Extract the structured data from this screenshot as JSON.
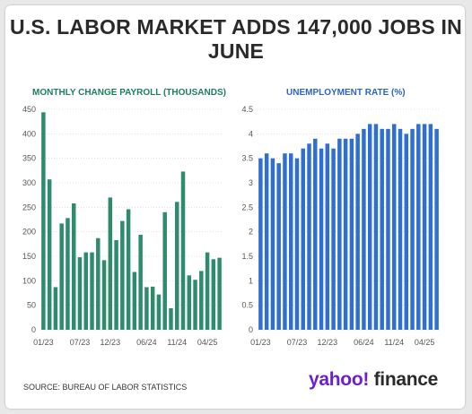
{
  "header": {
    "title": "U.S. LABOR MARKET ADDS 147,000 JOBS IN JUNE"
  },
  "footer": {
    "source": "SOURCE: BUREAU OF LABOR STATISTICS",
    "logo_part1": "yahoo!",
    "logo_part2": "finance"
  },
  "colors": {
    "payroll_bar": "#2e8b6e",
    "unemployment_bar": "#2f6fd1",
    "grid": "#cfcfcf"
  },
  "chart_data": [
    {
      "type": "bar",
      "title": "MONTHLY CHANGE PAYROLL (THOUSANDS)",
      "x": [
        "01/23",
        "02/23",
        "03/23",
        "04/23",
        "05/23",
        "06/23",
        "07/23",
        "08/23",
        "09/23",
        "10/23",
        "11/23",
        "12/23",
        "01/24",
        "02/24",
        "03/24",
        "04/24",
        "05/24",
        "06/24",
        "07/24",
        "08/24",
        "09/24",
        "10/24",
        "11/24",
        "12/24",
        "01/25",
        "02/25",
        "03/25",
        "04/25",
        "05/25",
        "06/25"
      ],
      "values": [
        444,
        307,
        87,
        217,
        228,
        258,
        148,
        158,
        158,
        187,
        142,
        270,
        183,
        222,
        246,
        118,
        194,
        87,
        88,
        72,
        240,
        44,
        261,
        323,
        111,
        102,
        120,
        158,
        144,
        147
      ],
      "ylim": [
        0,
        450
      ],
      "yticks": [
        0,
        50,
        100,
        150,
        200,
        250,
        300,
        350,
        400,
        450
      ],
      "xticks": [
        "01/23",
        "07/23",
        "12/23",
        "06/24",
        "11/24",
        "04/25"
      ],
      "xtick_index": [
        0,
        6,
        11,
        17,
        22,
        27
      ],
      "grid": true
    },
    {
      "type": "bar",
      "title": "UNEMPLOYMENT RATE (%)",
      "x": [
        "01/23",
        "02/23",
        "03/23",
        "04/23",
        "05/23",
        "06/23",
        "07/23",
        "08/23",
        "09/23",
        "10/23",
        "11/23",
        "12/23",
        "01/24",
        "02/24",
        "03/24",
        "04/24",
        "05/24",
        "06/24",
        "07/24",
        "08/24",
        "09/24",
        "10/24",
        "11/24",
        "12/24",
        "01/25",
        "02/25",
        "03/25",
        "04/25",
        "05/25",
        "06/25"
      ],
      "values": [
        3.5,
        3.6,
        3.5,
        3.4,
        3.6,
        3.6,
        3.5,
        3.7,
        3.8,
        3.9,
        3.7,
        3.8,
        3.7,
        3.9,
        3.9,
        3.9,
        4.0,
        4.1,
        4.2,
        4.2,
        4.1,
        4.1,
        4.2,
        4.1,
        4.0,
        4.1,
        4.2,
        4.2,
        4.2,
        4.1
      ],
      "ylim": [
        0,
        4.5
      ],
      "yticks": [
        0,
        0.5,
        1,
        1.5,
        2,
        2.5,
        3,
        3.5,
        4,
        4.5
      ],
      "ytick_labels": [
        "0",
        "0.5",
        "1",
        "1.5",
        "2",
        "2.5",
        "3",
        "3.5",
        "4",
        "4.5"
      ],
      "xticks": [
        "01/23",
        "07/23",
        "12/23",
        "06/24",
        "11/24",
        "04/25"
      ],
      "xtick_index": [
        0,
        6,
        11,
        17,
        22,
        27
      ],
      "grid": true
    }
  ]
}
